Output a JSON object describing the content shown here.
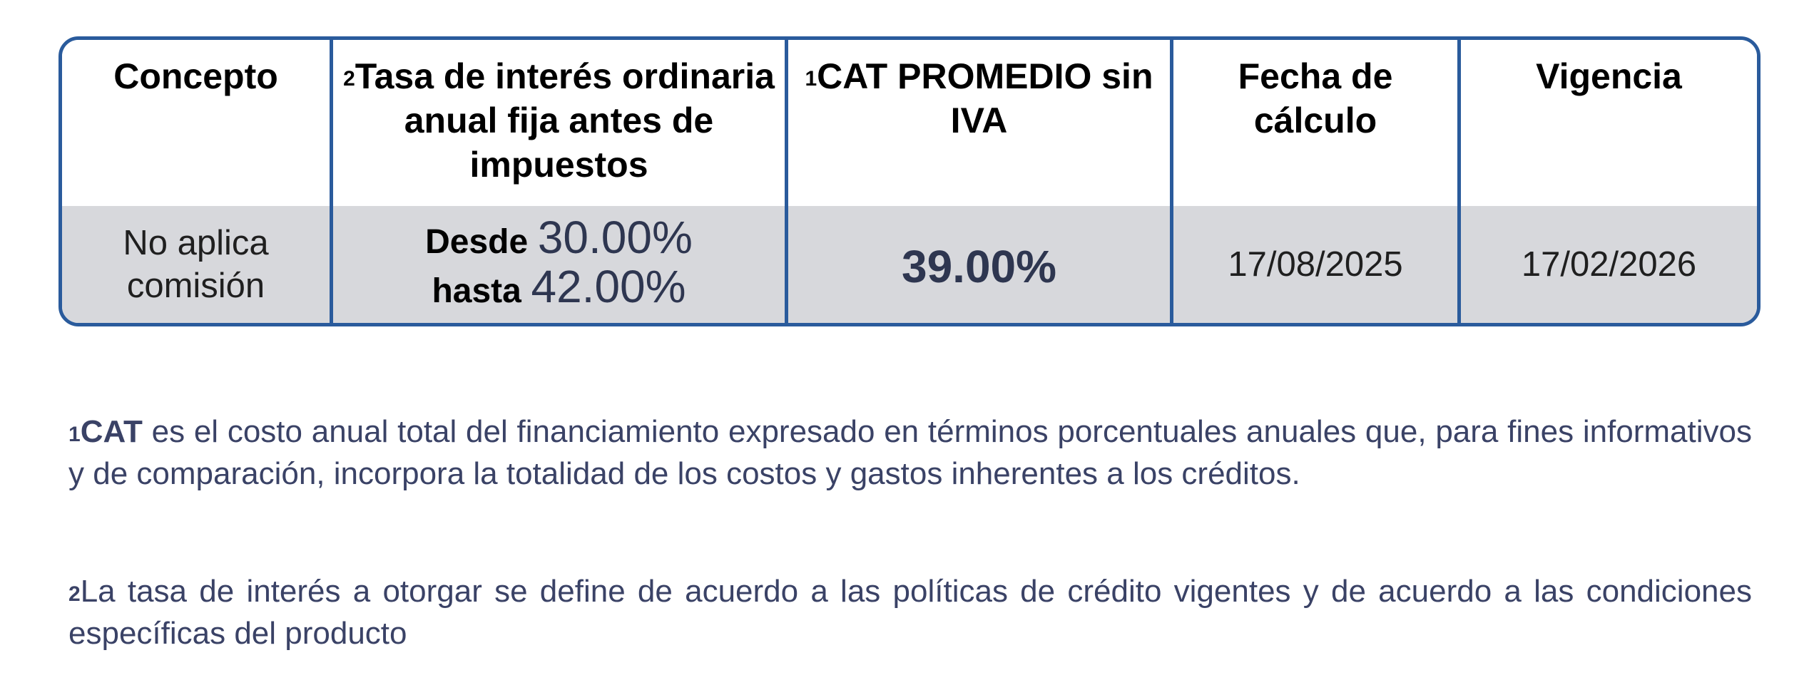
{
  "table": {
    "headers": [
      {
        "sup": "",
        "text": "Concepto"
      },
      {
        "sup": "2",
        "text": "Tasa de interés ordinaria anual fija antes de impuestos"
      },
      {
        "sup": "1",
        "text": "CAT PROMEDIO sin IVA"
      },
      {
        "sup": "",
        "text": "Fecha de cálculo"
      },
      {
        "sup": "",
        "text": "Vigencia"
      }
    ],
    "row": {
      "concepto": "No aplica comisión",
      "tasa_desde_label": "Desde",
      "tasa_desde_value": "30.00%",
      "tasa_hasta_label": "hasta",
      "tasa_hasta_value": "42.00%",
      "cat": "39.00%",
      "fecha_calculo": "17/08/2025",
      "vigencia": "17/02/2026"
    }
  },
  "notes": {
    "note1": {
      "sup": "1",
      "bold": "CAT",
      "text": " es el costo anual total del financiamiento expresado en términos porcentuales anuales que, para fines informativos y de comparación, incorpora la totalidad de los costos y gastos inherentes a los créditos."
    },
    "note2": {
      "sup": "2",
      "text": "La tasa de interés a otorgar se define de acuerdo a las políticas de crédito vigentes y de acuerdo a las condiciones específicas del producto"
    }
  },
  "colors": {
    "border": "#2a5b9c",
    "row_background": "#d7d8dc",
    "value_text": "#2e3650",
    "note_text": "#3a4266"
  }
}
